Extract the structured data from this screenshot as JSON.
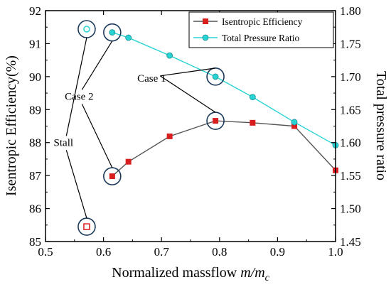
{
  "chart_data": {
    "type": "line",
    "xlabel": "Normalized massflow ",
    "xlabel_math": "m/m",
    "xlabel_sub": "c",
    "ylabel_left": "Isentropic Efficiency(%)",
    "ylabel_right": "Total pressure ratio",
    "xlim": [
      0.5,
      1.0
    ],
    "ylim_left": [
      85,
      92
    ],
    "ylim_right": [
      1.45,
      1.8
    ],
    "x_ticks": [
      "0.5",
      "0.6",
      "0.7",
      "0.8",
      "0.9",
      "1.0"
    ],
    "x_tick_values": [
      0.5,
      0.6,
      0.7,
      0.8,
      0.9,
      1.0
    ],
    "y_left_ticks": [
      "85",
      "86",
      "87",
      "88",
      "89",
      "90",
      "91",
      "92"
    ],
    "y_left_tick_values": [
      85,
      86,
      87,
      88,
      89,
      90,
      91,
      92
    ],
    "y_right_ticks": [
      "1.45",
      "1.50",
      "1.55",
      "1.60",
      "1.65",
      "1.70",
      "1.75",
      "1.80"
    ],
    "y_right_tick_values": [
      1.45,
      1.5,
      1.55,
      1.6,
      1.65,
      1.7,
      1.75,
      1.8
    ],
    "grid": false,
    "legend_position": "top-right",
    "series": [
      {
        "name": "Isentropic Efficiency",
        "axis": "left",
        "color": "#d81e1e",
        "line_color": "#555555",
        "marker": "square",
        "x": [
          0.615,
          0.643,
          0.714,
          0.793,
          0.857,
          0.929,
          1.0
        ],
        "y": [
          86.98,
          87.42,
          88.19,
          88.66,
          88.6,
          88.5,
          87.16
        ]
      },
      {
        "name": "Total Pressure Ratio",
        "axis": "right",
        "color": "#28d3d3",
        "line_color": "#28d3d3",
        "marker": "circle",
        "x": [
          0.615,
          0.643,
          0.714,
          0.793,
          0.857,
          0.929,
          1.0
        ],
        "y": [
          1.767,
          1.759,
          1.732,
          1.7,
          1.669,
          1.631,
          1.596
        ]
      }
    ],
    "stall_points": [
      {
        "series": "Isentropic Efficiency",
        "axis": "left",
        "marker": "hollow-square",
        "color": "#d81e1e",
        "x": 0.571,
        "y": 85.45
      },
      {
        "series": "Total Pressure Ratio",
        "axis": "right",
        "marker": "hollow-circle",
        "color": "#28d3d3",
        "x": 0.571,
        "y": 1.772
      }
    ],
    "annotations": [
      {
        "label": "Stall",
        "circles": [
          {
            "axis": "right",
            "x": 0.571,
            "y": 1.772
          },
          {
            "axis": "left",
            "x": 0.571,
            "y": 85.45
          }
        ]
      },
      {
        "label": "Case 2",
        "circles": [
          {
            "axis": "right",
            "x": 0.615,
            "y": 1.767
          },
          {
            "axis": "left",
            "x": 0.615,
            "y": 86.98
          }
        ]
      },
      {
        "label": "Case 1",
        "circles": [
          {
            "axis": "right",
            "x": 0.793,
            "y": 1.7
          },
          {
            "axis": "left",
            "x": 0.793,
            "y": 88.66
          }
        ]
      }
    ]
  }
}
